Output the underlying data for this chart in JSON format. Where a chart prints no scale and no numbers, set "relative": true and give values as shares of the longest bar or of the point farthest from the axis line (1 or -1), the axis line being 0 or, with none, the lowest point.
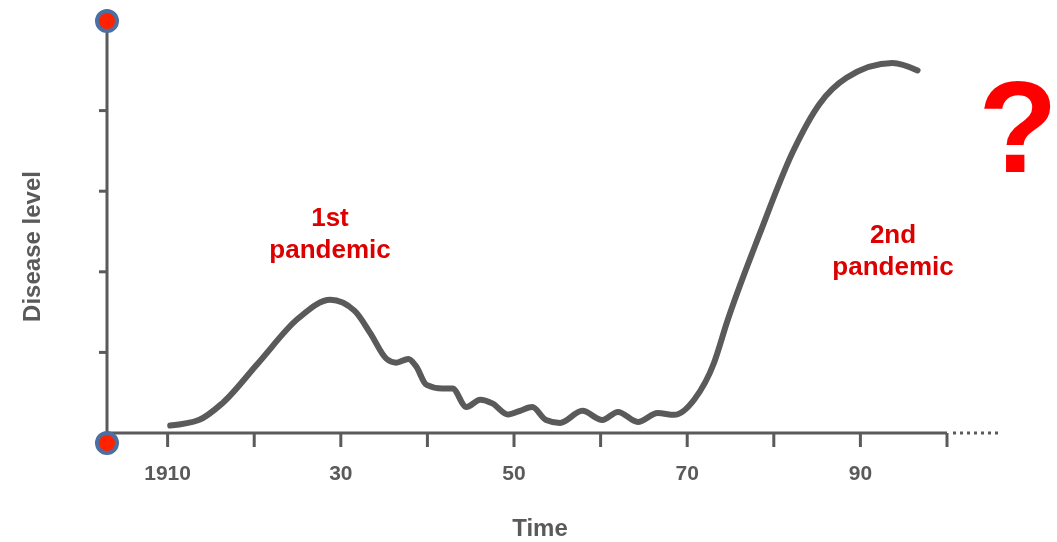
{
  "chart_data": {
    "type": "line",
    "relative": true,
    "xlabel": "Time",
    "ylabel": "Disease level",
    "color": "#5a5a5a",
    "tick_labels": "x",
    "xlim": [
      1903,
      2000
    ],
    "xticks": [
      {
        "value": 1910,
        "label": "1910"
      },
      {
        "value": 1920,
        "label": null
      },
      {
        "value": 1930,
        "label": "30"
      },
      {
        "value": 1940,
        "label": null
      },
      {
        "value": 1950,
        "label": "50"
      },
      {
        "value": 1960,
        "label": null
      },
      {
        "value": 1970,
        "label": "70"
      },
      {
        "value": 1980,
        "label": null
      },
      {
        "value": 1990,
        "label": "90"
      },
      {
        "value": 2000,
        "label": null
      }
    ],
    "x": [
      1910.3,
      1913.6,
      1916.3,
      1920.5,
      1925.1,
      1928.8,
      1931.6,
      1933.4,
      1935.3,
      1936.4,
      1937.8,
      1938.7,
      1939.9,
      1941.7,
      1942.9,
      1944.5,
      1946.1,
      1947.5,
      1949.3,
      1950.7,
      1952.1,
      1953.7,
      1955.3,
      1957.9,
      1960.2,
      1962.0,
      1964.3,
      1966.6,
      1968.5,
      1970.8,
      1973.1,
      1974.6,
      1978.4,
      1982.2,
      1985.3,
      1988.4,
      1993.7,
      1996.6
    ],
    "values": [
      0.02,
      0.035,
      0.08,
      0.19,
      0.31,
      0.36,
      0.33,
      0.27,
      0.2,
      0.19,
      0.2,
      0.18,
      0.13,
      0.12,
      0.12,
      0.07,
      0.09,
      0.08,
      0.05,
      0.06,
      0.07,
      0.035,
      0.027,
      0.06,
      0.035,
      0.057,
      0.03,
      0.054,
      0.049,
      0.09,
      0.19,
      0.3,
      0.54,
      0.76,
      0.89,
      0.96,
      1.0,
      0.98
    ],
    "annotations": [
      "1st pandemic",
      "2nd pandemic",
      "?"
    ]
  }
}
